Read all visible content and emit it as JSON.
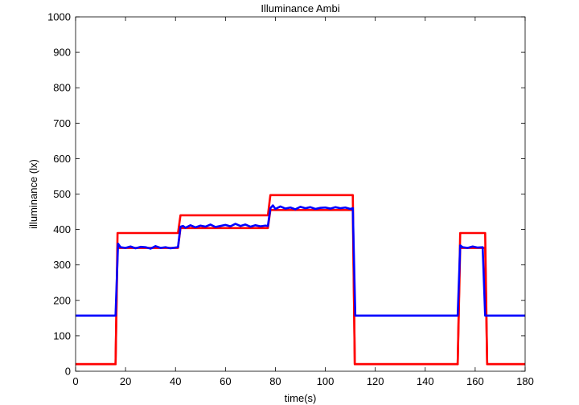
{
  "chart_data": {
    "type": "line",
    "title": "Illuminance Ambi",
    "xlabel": "time(s)",
    "ylabel": "illuminance (lx)",
    "xlim": [
      0,
      180
    ],
    "ylim": [
      0,
      1000
    ],
    "xticks": [
      0,
      20,
      40,
      60,
      80,
      100,
      120,
      140,
      160,
      180
    ],
    "yticks": [
      0,
      100,
      200,
      300,
      400,
      500,
      600,
      700,
      800,
      900,
      1000
    ],
    "grid": false,
    "series": [
      {
        "color": "#ff0000",
        "x": [
          0,
          16,
          16.8,
          41,
          42,
          77,
          78,
          111,
          111.8,
          153,
          154,
          164,
          164.8,
          180
        ],
        "y": [
          20,
          20,
          390,
          390,
          440,
          440,
          497,
          497,
          20,
          20,
          390,
          390,
          20,
          20
        ]
      },
      {
        "color": "#ff0000",
        "x": [
          0,
          16,
          16.8,
          41,
          42,
          77,
          78,
          111,
          111.8,
          153,
          154,
          164,
          164.8,
          180
        ],
        "y": [
          20,
          20,
          348,
          348,
          404,
          404,
          455,
          455,
          20,
          20,
          348,
          348,
          20,
          20
        ]
      },
      {
        "color": "#0000ff",
        "x": [
          0,
          16,
          17,
          18,
          20,
          22,
          24,
          26,
          28,
          30,
          32,
          34,
          36,
          38,
          40,
          41,
          42,
          43,
          44,
          46,
          48,
          50,
          52,
          54,
          56,
          58,
          60,
          62,
          64,
          66,
          68,
          70,
          72,
          74,
          76,
          77,
          78,
          79,
          80,
          82,
          84,
          86,
          88,
          90,
          92,
          94,
          96,
          98,
          100,
          102,
          104,
          106,
          108,
          110,
          111,
          112,
          153,
          154,
          155,
          157,
          159,
          161,
          163,
          164,
          165,
          180
        ],
        "y": [
          157,
          157,
          360,
          350,
          348,
          352,
          347,
          351,
          350,
          346,
          353,
          348,
          350,
          347,
          349,
          350,
          408,
          410,
          405,
          412,
          406,
          411,
          408,
          414,
          407,
          410,
          413,
          409,
          416,
          410,
          414,
          408,
          412,
          409,
          411,
          410,
          460,
          468,
          458,
          465,
          459,
          462,
          457,
          464,
          460,
          463,
          458,
          461,
          462,
          459,
          463,
          460,
          462,
          458,
          460,
          157,
          157,
          355,
          350,
          348,
          352,
          349,
          350,
          157,
          157,
          157
        ]
      }
    ]
  }
}
